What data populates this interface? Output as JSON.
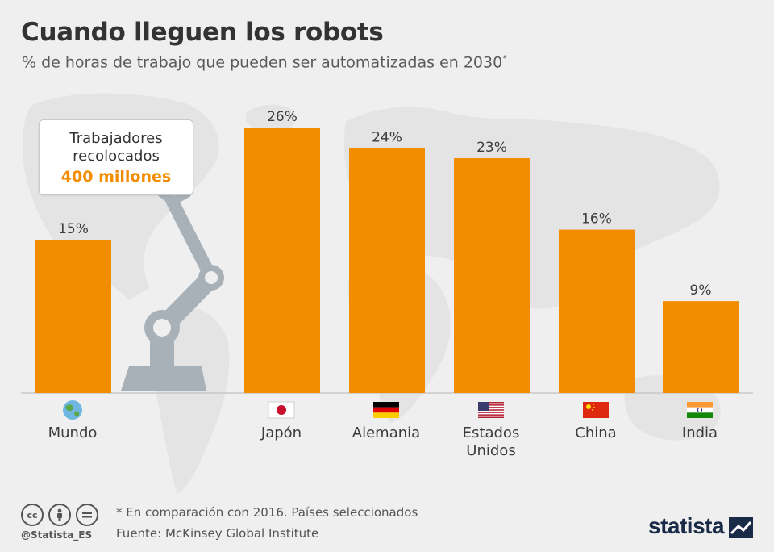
{
  "header": {
    "title": "Cuando lleguen los robots",
    "subtitle": "% de horas de trabajo que pueden ser automatizadas en 2030",
    "subtitle_mark": "*"
  },
  "callout": {
    "line1": "Trabajadores",
    "line2": "recolocados",
    "highlight": "400 millones"
  },
  "chart_data": {
    "type": "bar",
    "title": "Cuando lleguen los robots",
    "subtitle": "% de horas de trabajo que pueden ser automatizadas en 2030*",
    "categories": [
      "Mundo",
      "Japón",
      "Alemania",
      "Estados Unidos",
      "China",
      "India"
    ],
    "category_lines": [
      [
        "Mundo"
      ],
      [
        "Japón"
      ],
      [
        "Alemania"
      ],
      [
        "Estados",
        "Unidos"
      ],
      [
        "China"
      ],
      [
        "India"
      ]
    ],
    "icons": [
      "globe-icon",
      "japan-flag-icon",
      "germany-flag-icon",
      "usa-flag-icon",
      "china-flag-icon",
      "india-flag-icon"
    ],
    "values": [
      15,
      26,
      24,
      23,
      16,
      9
    ],
    "value_labels": [
      "15%",
      "26%",
      "24%",
      "23%",
      "16%",
      "9%"
    ],
    "ylim": [
      0,
      26
    ],
    "grid": false,
    "legend": "none",
    "bar_color": "#f28c00"
  },
  "footer": {
    "note": "* En comparación con 2016. Países seleccionados",
    "source": "Fuente: McKinsey Global Institute",
    "handle": "@Statista_ES",
    "brand": "statista"
  },
  "colors": {
    "bar": "#f28c00",
    "highlight": "#f28c00",
    "background": "#efefef",
    "map": "#e3e3e3",
    "robot": "#9aa4ad",
    "brand": "#1a2b47"
  }
}
